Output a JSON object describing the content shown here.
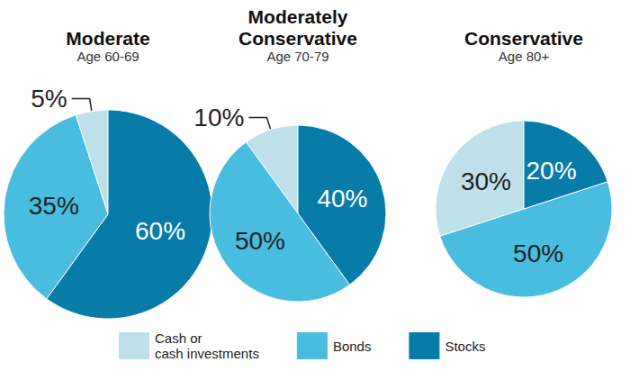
{
  "chart_data": [
    {
      "type": "pie",
      "title": "Moderate",
      "subtitle": "Age 60-69",
      "categories": [
        "Cash or\ncash investments",
        "Bonds",
        "Stocks"
      ],
      "values": [
        5,
        35,
        60
      ],
      "value_labels": [
        "5%",
        "35%",
        "60%"
      ],
      "colors": [
        "#bde0ea",
        "#48bde0",
        "#087ca8"
      ],
      "data_labels": true,
      "legend": "bottom"
    },
    {
      "type": "pie",
      "title": "Moderately\nConservative",
      "subtitle": "Age 70-79",
      "categories": [
        "Cash or\ncash investments",
        "Bonds",
        "Stocks"
      ],
      "values": [
        10,
        50,
        40
      ],
      "value_labels": [
        "10%",
        "50%",
        "40%"
      ],
      "colors": [
        "#bde0ea",
        "#48bde0",
        "#087ca8"
      ],
      "data_labels": true,
      "legend": "bottom"
    },
    {
      "type": "pie",
      "title": "Conservative",
      "subtitle": "Age 80+",
      "categories": [
        "Cash or\ncash investments",
        "Bonds",
        "Stocks"
      ],
      "values": [
        30,
        50,
        20
      ],
      "value_labels": [
        "30%",
        "50%",
        "20%"
      ],
      "colors": [
        "#bde0ea",
        "#48bde0",
        "#087ca8"
      ],
      "data_labels": true,
      "legend": "bottom"
    }
  ]
}
